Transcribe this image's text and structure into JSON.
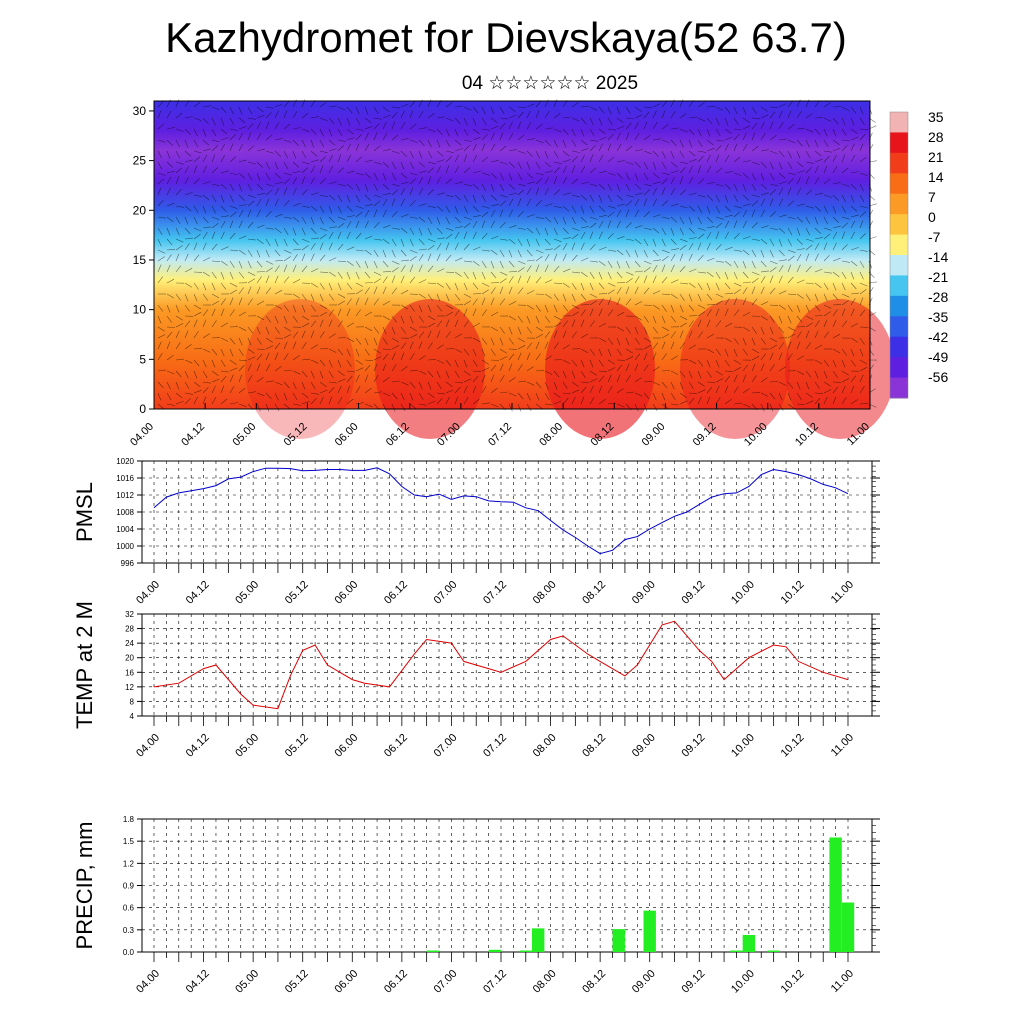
{
  "title": "Kazhydromet for Dievskaya(52 63.7)",
  "subtitle": "04 ☆☆☆☆☆☆ 2025",
  "time_labels": [
    "04.00",
    "04.12",
    "05.00",
    "05.12",
    "06.00",
    "06.12",
    "07.00",
    "07.12",
    "08.00",
    "08.12",
    "09.00",
    "09.12",
    "10.00",
    "10.12",
    "11.00"
  ],
  "chart_data": [
    {
      "type": "heatmap",
      "title": "",
      "ylim": [
        0,
        31
      ],
      "yticks": [
        "0",
        "5",
        "10",
        "15",
        "20",
        "25",
        "30"
      ],
      "colorbar": {
        "labels": [
          "35",
          "28",
          "21",
          "14",
          "7",
          "0",
          "-7",
          "-14",
          "-21",
          "-28",
          "-35",
          "-42",
          "-49",
          "-56"
        ],
        "colors": [
          "#f2b3b3",
          "#e8141c",
          "#f23d1a",
          "#f86d15",
          "#fb9a25",
          "#fdc43f",
          "#fff07a",
          "#bfeaf5",
          "#45c5f0",
          "#1f8ee6",
          "#2f5ce8",
          "#3c2fe6",
          "#5f1fe0",
          "#8a34d8"
        ]
      },
      "wind_barbs": true,
      "temperature_by_height": [
        {
          "height": 0,
          "temp": 22
        },
        {
          "height": 5,
          "temp": 14
        },
        {
          "height": 10,
          "temp": 4
        },
        {
          "height": 13,
          "temp": -4
        },
        {
          "height": 15,
          "temp": -12
        },
        {
          "height": 17,
          "temp": -22
        },
        {
          "height": 20,
          "temp": -35
        },
        {
          "height": 23,
          "temp": -52
        },
        {
          "height": 26,
          "temp": -57
        },
        {
          "height": 28,
          "temp": -50
        },
        {
          "height": 31,
          "temp": -45
        }
      ]
    },
    {
      "type": "line",
      "ylabel": "PMSL",
      "ylim": [
        996,
        1020
      ],
      "yticks": [
        "996",
        "1000",
        "1004",
        "1008",
        "1012",
        "1016",
        "1020"
      ],
      "color": "#0000cc",
      "x": [
        0,
        1,
        2,
        3,
        4,
        5,
        6,
        7,
        8,
        9,
        10,
        11,
        12,
        13,
        14,
        15,
        16,
        17,
        18,
        19,
        20,
        21,
        22,
        23,
        24,
        25,
        26,
        27,
        28,
        29,
        30,
        31,
        32,
        33,
        34,
        35,
        36,
        37,
        38,
        39,
        40,
        41,
        42,
        43,
        44,
        45,
        46,
        47,
        48,
        49,
        50,
        51,
        52,
        53,
        54,
        55,
        56
      ],
      "values": [
        1009,
        1011.5,
        1012.5,
        1013,
        1013.5,
        1014.2,
        1015.8,
        1016.2,
        1017.5,
        1018.3,
        1018.3,
        1018.2,
        1017.7,
        1017.8,
        1018,
        1018,
        1017.8,
        1017.8,
        1018.4,
        1017,
        1014,
        1012,
        1011.6,
        1012.2,
        1011,
        1011.8,
        1011.6,
        1010.6,
        1010.4,
        1010.3,
        1009,
        1008.3,
        1006,
        1003.8,
        1002,
        1000,
        998.2,
        999,
        1001.5,
        1002.2,
        1004,
        1005.5,
        1007,
        1008,
        1009.8,
        1011.5,
        1012.3,
        1012.5,
        1014,
        1016.8,
        1018,
        1017.5,
        1016.8,
        1015.8,
        1014.5,
        1013.7,
        1012.3
      ]
    },
    {
      "type": "line",
      "ylabel": "TEMP at 2 M",
      "ylim": [
        4,
        32
      ],
      "yticks": [
        "4",
        "8",
        "12",
        "16",
        "20",
        "24",
        "28",
        "32"
      ],
      "color": "#dd0000",
      "x": [
        0,
        2,
        4,
        5,
        7,
        8,
        10,
        11,
        12,
        13,
        14,
        16,
        17,
        19,
        21,
        22,
        24,
        25,
        27,
        28,
        30,
        32,
        33,
        35,
        36,
        38,
        39,
        41,
        42,
        44,
        45,
        46,
        48,
        50,
        51,
        52,
        54,
        56
      ],
      "values": [
        12,
        13,
        17,
        18,
        10,
        7,
        6,
        15,
        22,
        23.5,
        18,
        14,
        13,
        12,
        21,
        25,
        24,
        19,
        17,
        16,
        19,
        25,
        26,
        21,
        19,
        15,
        18,
        29,
        30,
        22,
        19,
        14,
        20,
        23.5,
        23,
        19,
        16,
        14
      ]
    },
    {
      "type": "bar",
      "ylabel": "PRECIP, mm",
      "ylim": [
        0,
        1.8
      ],
      "yticks": [
        "0.0",
        "0.3",
        "0.6",
        "0.9",
        "1.2",
        "1.5",
        "1.8"
      ],
      "color": "#22ee22",
      "bars": [
        {
          "x": 22.5,
          "value": 0.02
        },
        {
          "x": 27.5,
          "value": 0.03
        },
        {
          "x": 30,
          "value": 0.02
        },
        {
          "x": 31,
          "value": 0.32
        },
        {
          "x": 37.5,
          "value": 0.31
        },
        {
          "x": 40,
          "value": 0.56
        },
        {
          "x": 47,
          "value": 0.02
        },
        {
          "x": 48,
          "value": 0.23
        },
        {
          "x": 50,
          "value": 0.02
        },
        {
          "x": 55,
          "value": 1.55
        },
        {
          "x": 56,
          "value": 0.67
        }
      ]
    }
  ]
}
